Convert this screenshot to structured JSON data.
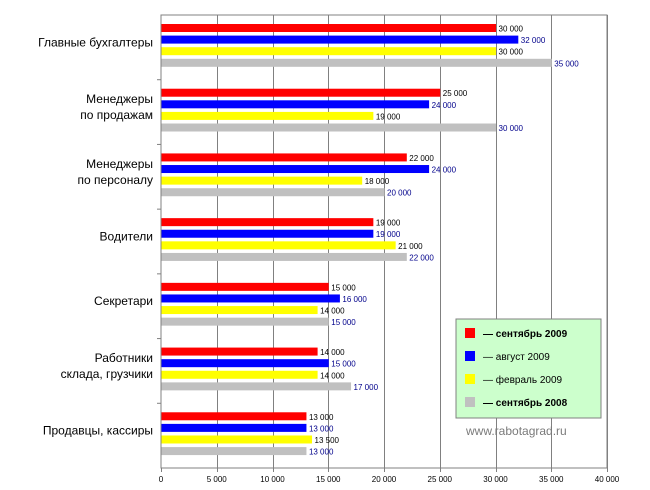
{
  "chart_data": {
    "type": "bar",
    "orientation": "horizontal",
    "categories": [
      "Главные бухгалтеры",
      "Менеджеры по продажам",
      "Менеджеры по персоналу",
      "Водители",
      "Секретари",
      "Работники склада, грузчики",
      "Продавцы, кассиры"
    ],
    "series": [
      {
        "name": "— сентябрь 2009",
        "bold": true,
        "color": "#ff0000",
        "label_color": "#000000",
        "values": [
          30000,
          25000,
          22000,
          19000,
          15000,
          14000,
          13000
        ],
        "labels": [
          "30 000",
          "25 000",
          "22 000",
          "19 000",
          "15 000",
          "14 000",
          "13 000"
        ]
      },
      {
        "name": "— август 2009",
        "bold": false,
        "color": "#0000ff",
        "label_color": "#00008b",
        "values": [
          32000,
          24000,
          24000,
          19000,
          16000,
          15000,
          13000
        ],
        "labels": [
          "32 000",
          "24 000",
          "24 000",
          "19 000",
          "16 000",
          "15 000",
          "13 000"
        ]
      },
      {
        "name": "— февраль 2009",
        "bold": false,
        "color": "#ffff00",
        "label_color": "#000000",
        "values": [
          30000,
          19000,
          18000,
          21000,
          14000,
          14000,
          13500
        ],
        "labels": [
          "30 000",
          "19 000",
          "18 000",
          "21 000",
          "14 000",
          "14 000",
          "13 500"
        ]
      },
      {
        "name": "— сентябрь 2008",
        "bold": true,
        "color": "#c0c0c0",
        "label_color": "#00008b",
        "values": [
          35000,
          30000,
          20000,
          22000,
          15000,
          17000,
          13000
        ],
        "labels": [
          "35 000",
          "30 000",
          "20 000",
          "22 000",
          "15 000",
          "17 000",
          "13 000"
        ]
      }
    ],
    "xlim": [
      0,
      40000
    ],
    "xticks": [
      0,
      5000,
      10000,
      15000,
      20000,
      25000,
      30000,
      35000,
      40000
    ],
    "xtick_labels": [
      "0",
      "5 000",
      "10 000",
      "15 000",
      "20 000",
      "25 000",
      "30 000",
      "35 000",
      "40 000"
    ],
    "grid": true,
    "legend_position": "bottom-right",
    "legend_background": "#ccffcc",
    "watermark": "www.rabotagrad.ru"
  }
}
